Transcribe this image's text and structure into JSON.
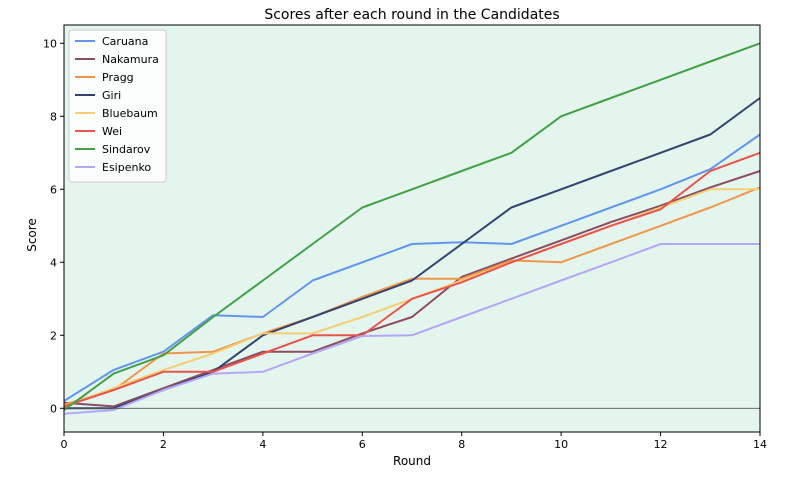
{
  "chart_data": {
    "type": "line",
    "title": "Scores after each round in the Candidates",
    "xlabel": "Round",
    "ylabel": "Score",
    "xlim": [
      0,
      14
    ],
    "ylim": [
      -0.65,
      10.5
    ],
    "x_ticks": [
      0,
      2,
      4,
      6,
      8,
      10,
      12,
      14
    ],
    "y_ticks": [
      0,
      2,
      4,
      6,
      8,
      10
    ],
    "background": "#e4f5ee",
    "zero_line": true,
    "legend_position": "top-left",
    "x": [
      0,
      1,
      2,
      3,
      4,
      5,
      6,
      7,
      8,
      9,
      10,
      11,
      12,
      13,
      14
    ],
    "series": [
      {
        "name": "Caruana",
        "color": "#6495ed",
        "values": [
          0.2,
          1.05,
          1.55,
          2.55,
          2.5,
          3.5,
          4.0,
          4.5,
          4.55,
          4.5,
          5.0,
          5.5,
          6.0,
          6.55,
          7.5
        ]
      },
      {
        "name": "Nakamura",
        "color": "#8b4d62",
        "values": [
          0.15,
          0.05,
          0.55,
          1.05,
          1.55,
          1.55,
          2.05,
          2.5,
          3.6,
          4.1,
          4.6,
          5.1,
          5.55,
          6.05,
          6.5
        ]
      },
      {
        "name": "Pragg",
        "color": "#f0964c",
        "values": [
          0.1,
          0.5,
          1.5,
          1.55,
          2.05,
          2.5,
          3.05,
          3.55,
          3.55,
          4.05,
          4.0,
          4.5,
          5.0,
          5.5,
          6.05
        ]
      },
      {
        "name": "Giri",
        "color": "#344470",
        "values": [
          0.0,
          0.0,
          0.5,
          1.0,
          2.0,
          2.5,
          3.0,
          3.5,
          4.5,
          5.5,
          6.0,
          6.5,
          7.0,
          7.5,
          8.5
        ]
      },
      {
        "name": "Bluebaum",
        "color": "#f5cd73",
        "values": [
          0.05,
          0.55,
          1.05,
          1.5,
          2.05,
          2.05,
          2.5,
          3.0,
          3.5,
          4.0,
          4.5,
          5.0,
          5.5,
          6.0,
          6.0
        ]
      },
      {
        "name": "Wei",
        "color": "#e8554e",
        "values": [
          0.05,
          0.5,
          1.0,
          1.0,
          1.5,
          2.0,
          2.0,
          3.0,
          3.45,
          4.0,
          4.5,
          5.0,
          5.45,
          6.5,
          7.0
        ]
      },
      {
        "name": "Sindarov",
        "color": "#43a047",
        "values": [
          -0.05,
          0.95,
          1.45,
          2.5,
          3.5,
          4.5,
          5.5,
          6.0,
          6.5,
          7.0,
          8.0,
          8.5,
          9.0,
          9.5,
          10.0
        ]
      },
      {
        "name": "Esipenko",
        "color": "#b4a7f5",
        "values": [
          -0.15,
          -0.05,
          0.5,
          0.95,
          1.0,
          1.5,
          1.98,
          2.0,
          2.5,
          3.0,
          3.5,
          4.0,
          4.5,
          4.5,
          4.5
        ]
      }
    ]
  }
}
